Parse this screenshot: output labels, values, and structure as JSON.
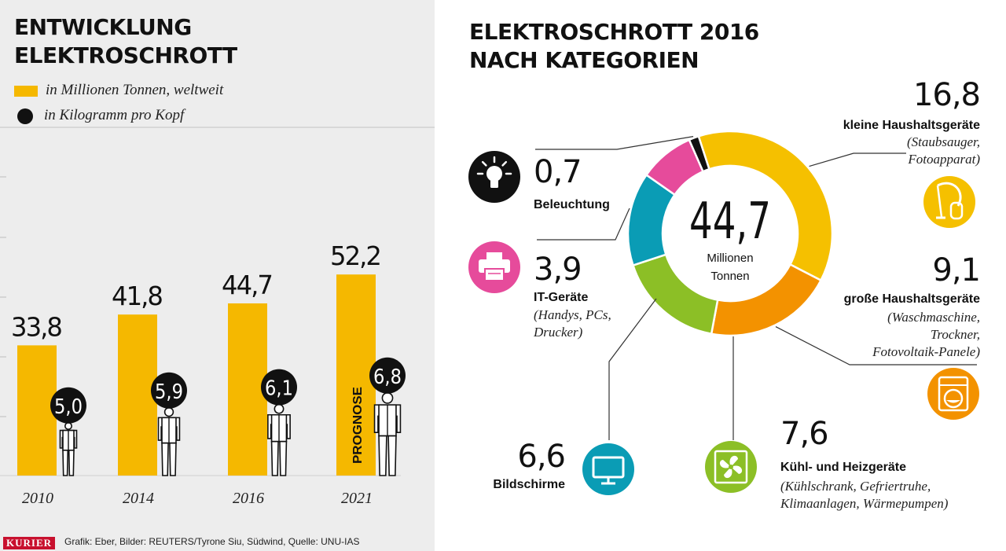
{
  "left_panel": {
    "title_line1": "ENTWICKLUNG",
    "title_line2": "ELEKTROSCHROTT",
    "legend_bar": "in Millionen Tonnen, weltweit",
    "legend_dot": "in Kilogramm pro Kopf",
    "prognose_label": "PROGNOSE"
  },
  "right_panel": {
    "title_line1": "ELEKTROSCHROTT 2016",
    "title_line2": "NACH KATEGORIEN",
    "center_value": "44,7",
    "center_unit_line1": "Millionen",
    "center_unit_line2": "Tonnen"
  },
  "footer": {
    "brand": "KURIER",
    "credits": "Grafik: Eber, Bilder: REUTERS/Tyrone Siu, Südwind, Quelle: UNU-IAS"
  },
  "colors": {
    "bar": "#f5b800",
    "kleine_haushaltsgeraete": "#f5c000",
    "grosse_haushaltsgeraete": "#f39200",
    "kuehl_heizgeraete": "#8cbf26",
    "bildschirme": "#0a9cb5",
    "it_geraete": "#e64b9b",
    "beleuchtung": "#111111"
  },
  "chart_data": [
    {
      "type": "bar",
      "title": "ENTWICKLUNG ELEKTROSCHROTT",
      "categories": [
        "2010",
        "2014",
        "2016",
        "2021"
      ],
      "series": [
        {
          "name": "in Millionen Tonnen, weltweit",
          "values": [
            33.8,
            41.8,
            44.7,
            52.2
          ],
          "labels": [
            "33,8",
            "41,8",
            "44,7",
            "52,2"
          ]
        },
        {
          "name": "in Kilogramm pro Kopf",
          "values": [
            5.0,
            5.9,
            6.1,
            6.8
          ],
          "labels": [
            "5,0",
            "5,9",
            "6,1",
            "6,8"
          ]
        }
      ],
      "ylim": [
        0,
        60
      ],
      "grid": false,
      "legend": "top-left"
    },
    {
      "type": "pie",
      "title": "ELEKTROSCHROTT 2016 NACH KATEGORIEN",
      "total": 44.7,
      "slices": [
        {
          "label": "kleine Haushaltsgeräte",
          "value": 16.8,
          "display": "16,8",
          "sub": [
            "(Staubsauger,",
            "Fotoapparat)"
          ],
          "icon": "vacuum-icon",
          "color": "#f5c000"
        },
        {
          "label": "große Haushaltsgeräte",
          "value": 9.1,
          "display": "9,1",
          "sub": [
            "(Waschmaschine,",
            "Trockner,",
            "Fotovoltaik-Panele)"
          ],
          "icon": "washing-machine-icon",
          "color": "#f39200"
        },
        {
          "label": "Kühl- und Heizgeräte",
          "value": 7.6,
          "display": "7,6",
          "sub": [
            "(Kühlschrank, Gefriertruhe,",
            "Klimaanlagen, Wärmepumpen)"
          ],
          "icon": "fan-icon",
          "color": "#8cbf26"
        },
        {
          "label": "Bildschirme",
          "value": 6.6,
          "display": "6,6",
          "sub": [],
          "icon": "monitor-icon",
          "color": "#0a9cb5"
        },
        {
          "label": "IT-Geräte",
          "value": 3.9,
          "display": "3,9",
          "sub": [
            "(Handys, PCs,",
            "Drucker)"
          ],
          "icon": "printer-icon",
          "color": "#e64b9b"
        },
        {
          "label": "Beleuchtung",
          "value": 0.7,
          "display": "0,7",
          "sub": [],
          "icon": "light-bulb-icon",
          "color": "#111111"
        }
      ]
    }
  ]
}
